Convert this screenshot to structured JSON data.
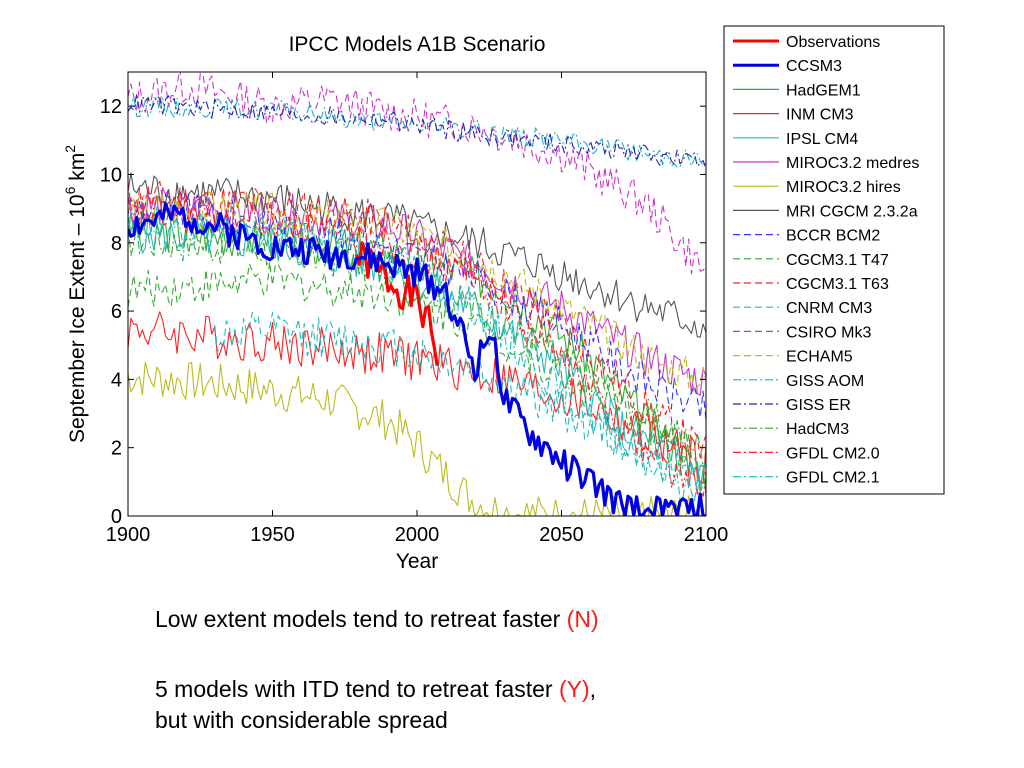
{
  "chart_data": {
    "type": "line",
    "title": "IPCC Models A1B Scenario",
    "xlabel": "Year",
    "ylabel_main": "September Ice Extent – 10",
    "ylabel_sup": "6",
    "ylabel_unit": " km",
    "ylabel_unit_sup": "2",
    "xlim": [
      1900,
      2100
    ],
    "ylim": [
      0,
      13
    ],
    "xticks": [
      1900,
      1950,
      2000,
      2050,
      2100
    ],
    "yticks": [
      0,
      2,
      4,
      6,
      8,
      10,
      12
    ],
    "legend_position": "outside-right",
    "series": [
      {
        "name": "Observations",
        "color": "#ff0000",
        "style": "solid",
        "width": 3.2,
        "start": 1979,
        "end": 2007,
        "anchors": [
          [
            1979,
            7.6
          ],
          [
            1985,
            7.3
          ],
          [
            1990,
            6.9
          ],
          [
            1995,
            6.6
          ],
          [
            2000,
            6.3
          ],
          [
            2005,
            5.4
          ],
          [
            2007,
            4.6
          ]
        ],
        "noise": 0.55,
        "jitter_seed": 1
      },
      {
        "name": "CCSM3",
        "color": "#0000e6",
        "style": "solid",
        "width": 3.2,
        "anchors": [
          [
            1900,
            8.5
          ],
          [
            1920,
            8.8
          ],
          [
            1950,
            7.9
          ],
          [
            1980,
            7.6
          ],
          [
            2000,
            7.1
          ],
          [
            2010,
            6.6
          ],
          [
            2015,
            5.5
          ],
          [
            2020,
            4.3
          ],
          [
            2026,
            5.6
          ],
          [
            2030,
            3.4
          ],
          [
            2040,
            2.3
          ],
          [
            2050,
            1.6
          ],
          [
            2060,
            1.0
          ],
          [
            2070,
            0.3
          ],
          [
            2080,
            0.1
          ],
          [
            2100,
            0.2
          ]
        ],
        "noise": 0.45,
        "jitter_seed": 2
      },
      {
        "name": "HadGEM1",
        "color": "#33aa33",
        "style": "solid",
        "width": 1.1,
        "anchors": [
          [
            1900,
            8.4
          ],
          [
            1950,
            8.1
          ],
          [
            1980,
            7.9
          ],
          [
            2000,
            7.6
          ],
          [
            2030,
            6.7
          ],
          [
            2060,
            4.6
          ],
          [
            2080,
            2.7
          ],
          [
            2100,
            1.1
          ]
        ],
        "noise": 0.6,
        "jitter_seed": 3
      },
      {
        "name": "INM CM3",
        "color": "#ff2020",
        "style": "solid",
        "width": 1.1,
        "anchors": [
          [
            1900,
            5.5
          ],
          [
            1950,
            5.1
          ],
          [
            2000,
            4.6
          ],
          [
            2030,
            4.0
          ],
          [
            2060,
            3.2
          ],
          [
            2080,
            2.3
          ],
          [
            2100,
            1.5
          ]
        ],
        "noise": 0.65,
        "jitter_seed": 4
      },
      {
        "name": "IPSL CM4",
        "color": "#22bbbb",
        "style": "solid",
        "width": 1.1,
        "anchors": [
          [
            1900,
            8.3
          ],
          [
            1950,
            8.0
          ],
          [
            1990,
            7.3
          ],
          [
            2020,
            6.1
          ],
          [
            2050,
            4.4
          ],
          [
            2070,
            2.6
          ],
          [
            2100,
            1.3
          ]
        ],
        "noise": 0.6,
        "jitter_seed": 5
      },
      {
        "name": "MIROC3.2 medres",
        "color": "#cc33cc",
        "style": "solid",
        "width": 1.1,
        "anchors": [
          [
            1900,
            9.1
          ],
          [
            1950,
            8.9
          ],
          [
            1990,
            8.5
          ],
          [
            2020,
            7.4
          ],
          [
            2050,
            6.1
          ],
          [
            2080,
            4.6
          ],
          [
            2100,
            3.9
          ]
        ],
        "noise": 0.6,
        "jitter_seed": 6
      },
      {
        "name": "MIROC3.2 hires",
        "color": "#bbbb22",
        "style": "solid",
        "width": 1.1,
        "anchors": [
          [
            1900,
            4.1
          ],
          [
            1940,
            3.8
          ],
          [
            1970,
            3.4
          ],
          [
            1990,
            2.8
          ],
          [
            2000,
            2.1
          ],
          [
            2010,
            1.2
          ],
          [
            2020,
            0.4
          ],
          [
            2030,
            0.1
          ],
          [
            2050,
            0.0
          ],
          [
            2100,
            0.0
          ]
        ],
        "noise": 0.6,
        "jitter_seed": 7
      },
      {
        "name": "MRI CGCM 2.3.2a",
        "color": "#555555",
        "style": "solid",
        "width": 1.1,
        "anchors": [
          [
            1900,
            9.6
          ],
          [
            1950,
            9.3
          ],
          [
            1990,
            8.7
          ],
          [
            2020,
            8.0
          ],
          [
            2050,
            7.1
          ],
          [
            2080,
            6.1
          ],
          [
            2100,
            5.5
          ]
        ],
        "noise": 0.55,
        "jitter_seed": 8
      },
      {
        "name": "BCCR BCM2",
        "color": "#3333ff",
        "style": "dash",
        "width": 1.1,
        "anchors": [
          [
            1900,
            9.1
          ],
          [
            1950,
            8.6
          ],
          [
            1990,
            7.9
          ],
          [
            2020,
            7.0
          ],
          [
            2050,
            5.6
          ],
          [
            2080,
            3.9
          ],
          [
            2100,
            3.1
          ]
        ],
        "noise": 0.55,
        "jitter_seed": 9
      },
      {
        "name": "CGCM3.1 T47",
        "color": "#33aa33",
        "style": "dash",
        "width": 1.1,
        "anchors": [
          [
            1900,
            6.6
          ],
          [
            1950,
            6.9
          ],
          [
            1990,
            6.5
          ],
          [
            2020,
            5.6
          ],
          [
            2050,
            4.1
          ],
          [
            2080,
            2.6
          ],
          [
            2100,
            1.6
          ]
        ],
        "noise": 0.55,
        "jitter_seed": 10
      },
      {
        "name": "CGCM3.1 T63",
        "color": "#ff2020",
        "style": "dash",
        "width": 1.1,
        "anchors": [
          [
            1900,
            9.3
          ],
          [
            1950,
            9.1
          ],
          [
            1990,
            8.6
          ],
          [
            2020,
            7.3
          ],
          [
            2050,
            5.6
          ],
          [
            2080,
            3.1
          ],
          [
            2100,
            1.8
          ]
        ],
        "noise": 0.6,
        "jitter_seed": 11
      },
      {
        "name": "CNRM CM3",
        "color": "#22bbbb",
        "style": "dash",
        "width": 1.1,
        "start": 1930,
        "anchors": [
          [
            1930,
            5.3
          ],
          [
            1950,
            5.4
          ],
          [
            1990,
            5.0
          ],
          [
            2020,
            4.3
          ],
          [
            2050,
            3.1
          ],
          [
            2080,
            1.8
          ],
          [
            2100,
            1.0
          ]
        ],
        "noise": 0.6,
        "jitter_seed": 12
      },
      {
        "name": "CSIRO Mk3",
        "color": "#cc33cc",
        "style": "dash",
        "width": 1.1,
        "anchors": [
          [
            1900,
            12.2
          ],
          [
            1920,
            12.6
          ],
          [
            1950,
            12.0
          ],
          [
            1970,
            12.2
          ],
          [
            1990,
            11.8
          ],
          [
            2020,
            11.4
          ],
          [
            2050,
            10.6
          ],
          [
            2080,
            9.1
          ],
          [
            2100,
            7.1
          ]
        ],
        "noise": 0.55,
        "jitter_seed": 13
      },
      {
        "name": "ECHAM5",
        "color": "#bbbb22",
        "style": "dash",
        "width": 1.1,
        "anchors": [
          [
            1900,
            9.0
          ],
          [
            1950,
            8.9
          ],
          [
            1990,
            8.5
          ],
          [
            2020,
            7.6
          ],
          [
            2050,
            6.1
          ],
          [
            2080,
            4.6
          ],
          [
            2100,
            3.9
          ]
        ],
        "noise": 0.55,
        "jitter_seed": 14
      },
      {
        "name": "GISS AOM",
        "color": "#22aacc",
        "style": "dashdot",
        "width": 1.1,
        "anchors": [
          [
            1900,
            12.0
          ],
          [
            1950,
            11.9
          ],
          [
            1990,
            11.5
          ],
          [
            2020,
            11.3
          ],
          [
            2050,
            11.0
          ],
          [
            2080,
            10.6
          ],
          [
            2100,
            10.4
          ]
        ],
        "noise": 0.3,
        "jitter_seed": 15
      },
      {
        "name": "GISS ER",
        "color": "#2222aa",
        "style": "dashdot",
        "width": 1.1,
        "anchors": [
          [
            1900,
            12.1
          ],
          [
            1950,
            11.8
          ],
          [
            1990,
            11.6
          ],
          [
            2020,
            11.2
          ],
          [
            2050,
            10.9
          ],
          [
            2080,
            10.6
          ],
          [
            2100,
            10.3
          ]
        ],
        "noise": 0.3,
        "jitter_seed": 16
      },
      {
        "name": "HadCM3",
        "color": "#33aa33",
        "style": "dashdot",
        "width": 1.1,
        "anchors": [
          [
            1900,
            8.1
          ],
          [
            1950,
            7.8
          ],
          [
            1990,
            7.2
          ],
          [
            2020,
            6.1
          ],
          [
            2050,
            4.6
          ],
          [
            2080,
            2.9
          ],
          [
            2100,
            1.9
          ]
        ],
        "noise": 0.55,
        "jitter_seed": 17
      },
      {
        "name": "GFDL CM2.0",
        "color": "#ff2020",
        "style": "dashdot",
        "width": 1.1,
        "anchors": [
          [
            1900,
            8.9
          ],
          [
            1950,
            8.6
          ],
          [
            1990,
            8.1
          ],
          [
            2020,
            7.0
          ],
          [
            2050,
            4.6
          ],
          [
            2080,
            1.9
          ],
          [
            2100,
            0.6
          ]
        ],
        "noise": 0.55,
        "jitter_seed": 18
      },
      {
        "name": "GFDL CM2.1",
        "color": "#22bbbb",
        "style": "dashdot",
        "width": 1.1,
        "anchors": [
          [
            1900,
            8.6
          ],
          [
            1950,
            8.3
          ],
          [
            1990,
            7.7
          ],
          [
            2020,
            6.1
          ],
          [
            2050,
            3.6
          ],
          [
            2080,
            1.6
          ],
          [
            2100,
            0.5
          ]
        ],
        "noise": 0.55,
        "jitter_seed": 19
      }
    ]
  },
  "captions": {
    "line1_text": "Low extent models tend to retreat faster ",
    "line1_flag": "(N)",
    "line2_text": "5 models with ITD tend to retreat faster ",
    "line2_flag": "(Y)",
    "line2_tail": ",",
    "line3_text": "but with considerable spread"
  }
}
